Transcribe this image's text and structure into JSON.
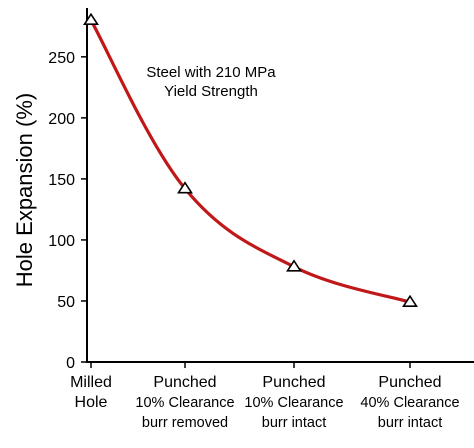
{
  "chart_data": {
    "type": "line",
    "title": "",
    "ylabel": "Hole Expansion (%)",
    "xlabel": "",
    "ylim": [
      0,
      290
    ],
    "yticks": [
      0,
      50,
      100,
      150,
      200,
      250
    ],
    "categories": [
      {
        "lines": [
          "Milled",
          "Hole"
        ]
      },
      {
        "lines": [
          "Punched",
          "10% Clearance",
          "burr removed"
        ]
      },
      {
        "lines": [
          "Punched",
          "10% Clearance",
          "burr intact"
        ]
      },
      {
        "lines": [
          "Punched",
          "40% Clearance",
          "burr intact"
        ]
      }
    ],
    "series": [
      {
        "values": [
          280,
          142,
          78,
          49
        ],
        "color": "#c01818",
        "marker": "triangle-open"
      }
    ],
    "annotation": {
      "lines": [
        "Steel with 210 MPa",
        "Yield Strength"
      ]
    },
    "grid": false,
    "legend": "none"
  }
}
